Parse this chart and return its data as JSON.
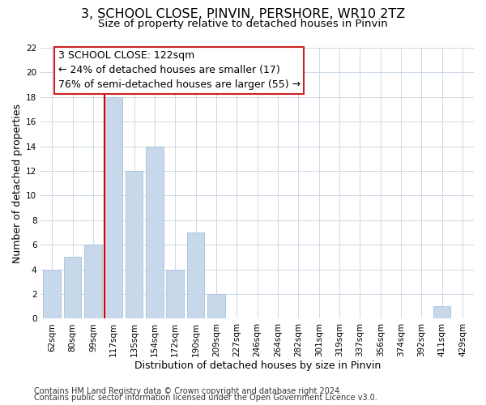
{
  "title": "3, SCHOOL CLOSE, PINVIN, PERSHORE, WR10 2TZ",
  "subtitle": "Size of property relative to detached houses in Pinvin",
  "xlabel": "Distribution of detached houses by size in Pinvin",
  "ylabel": "Number of detached properties",
  "bar_labels": [
    "62sqm",
    "80sqm",
    "99sqm",
    "117sqm",
    "135sqm",
    "154sqm",
    "172sqm",
    "190sqm",
    "209sqm",
    "227sqm",
    "246sqm",
    "264sqm",
    "282sqm",
    "301sqm",
    "319sqm",
    "337sqm",
    "356sqm",
    "374sqm",
    "392sqm",
    "411sqm",
    "429sqm"
  ],
  "bar_values": [
    4,
    5,
    6,
    18,
    12,
    14,
    4,
    7,
    2,
    0,
    0,
    0,
    0,
    0,
    0,
    0,
    0,
    0,
    0,
    1,
    0
  ],
  "bar_color": "#c8d8eb",
  "bar_edge_color": "#a8c0d8",
  "vline_index": 3,
  "vline_color": "#cc0000",
  "annotation_line1": "3 SCHOOL CLOSE: 122sqm",
  "annotation_line2": "← 24% of detached houses are smaller (17)",
  "annotation_line3": "76% of semi-detached houses are larger (55) →",
  "ylim": [
    0,
    22
  ],
  "yticks": [
    0,
    2,
    4,
    6,
    8,
    10,
    12,
    14,
    16,
    18,
    20,
    22
  ],
  "footer_line1": "Contains HM Land Registry data © Crown copyright and database right 2024.",
  "footer_line2": "Contains public sector information licensed under the Open Government Licence v3.0.",
  "background_color": "#ffffff",
  "grid_color": "#cdd9e5",
  "title_fontsize": 11.5,
  "subtitle_fontsize": 9.5,
  "axis_label_fontsize": 9,
  "tick_fontsize": 7.5,
  "annotation_fontsize": 9,
  "footer_fontsize": 7
}
